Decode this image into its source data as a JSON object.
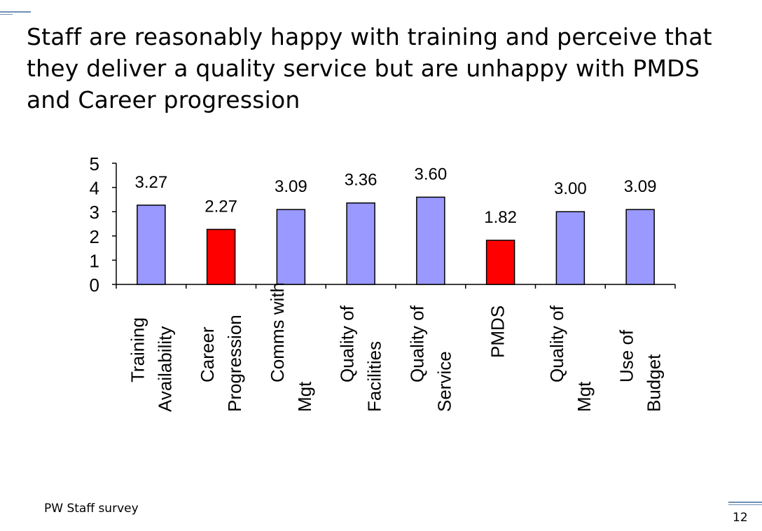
{
  "slide": {
    "title": "Staff are reasonably happy with training and perceive that they deliver a quality service but are unhappy with PMDS and Career progression",
    "footer": "PW Staff survey",
    "page_number": "12"
  },
  "colors": {
    "bar_default": "#9999ff",
    "bar_highlight": "#ff0000",
    "decor": "#6f8fb5"
  },
  "chart_data": {
    "type": "bar",
    "categories": [
      [
        "Training",
        "Availability"
      ],
      [
        "Career",
        "Progression"
      ],
      [
        "Comms with",
        "Mgt"
      ],
      [
        "Quality of",
        "Facilities"
      ],
      [
        "Quality of",
        "Service"
      ],
      [
        "PMDS"
      ],
      [
        "Quality of",
        "Mgt"
      ],
      [
        "Use of",
        "Budget"
      ]
    ],
    "values": [
      3.27,
      2.27,
      3.09,
      3.36,
      3.6,
      1.82,
      3.0,
      3.09
    ],
    "data_labels": [
      "3.27",
      "2.27",
      "3.09",
      "3.36",
      "3.60",
      "1.82",
      "3.00",
      "3.09"
    ],
    "highlighted": [
      false,
      true,
      false,
      false,
      false,
      true,
      false,
      false
    ],
    "ylim": [
      0,
      5
    ],
    "yticks": [
      "0",
      "1",
      "2",
      "3",
      "4",
      "5"
    ],
    "grid": false,
    "legend": "none",
    "xlabel": "",
    "ylabel": ""
  }
}
